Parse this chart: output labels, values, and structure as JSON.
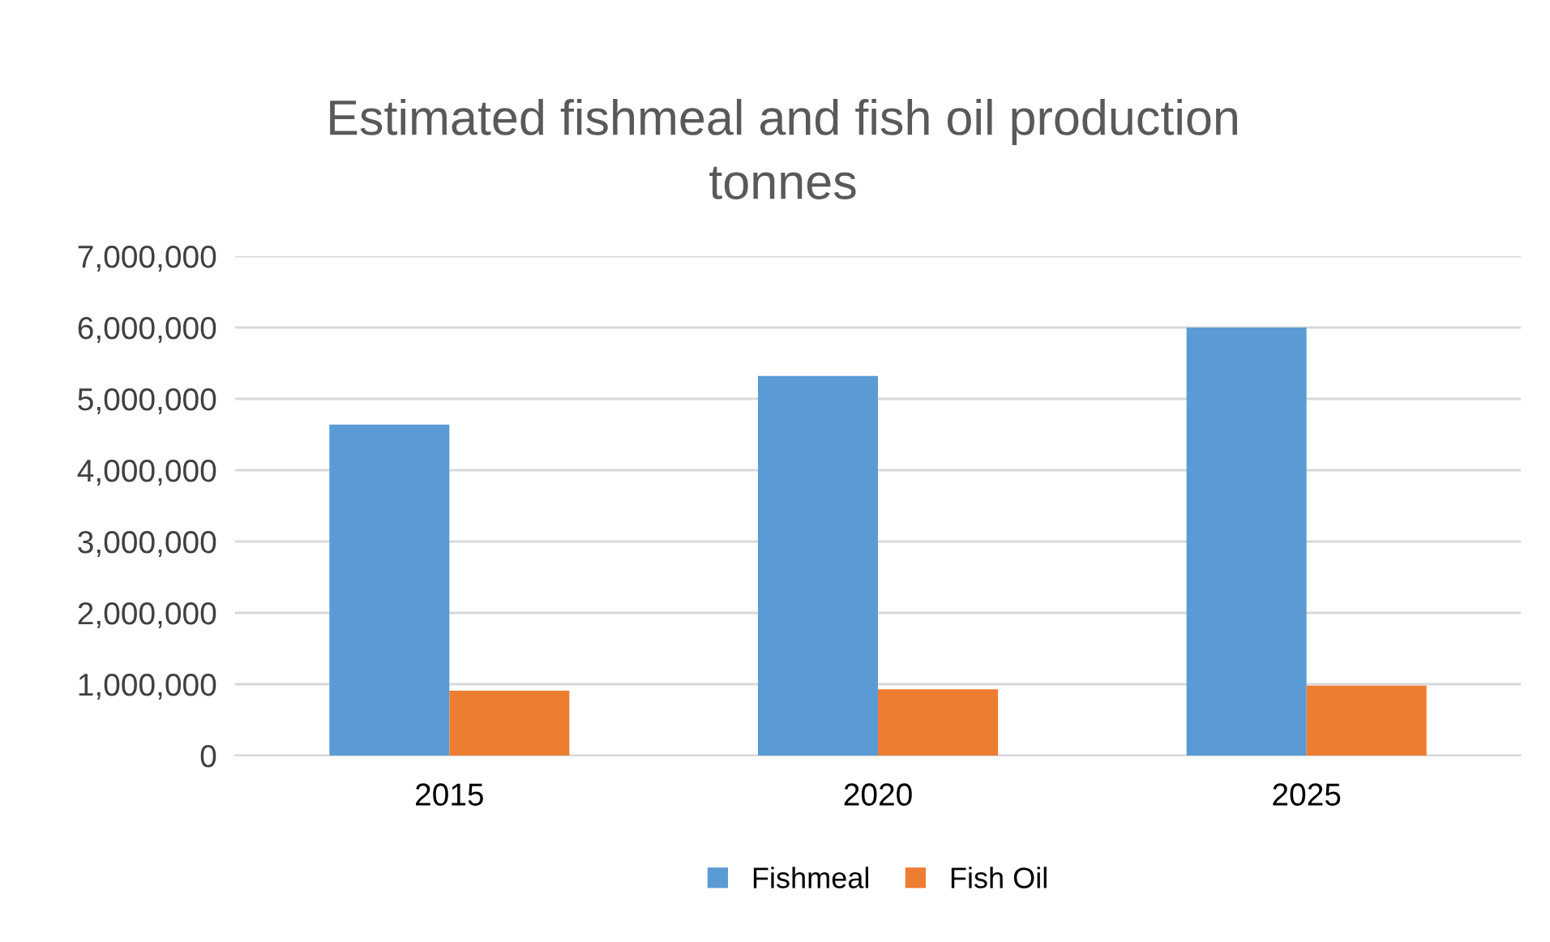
{
  "chart_data": {
    "type": "bar",
    "title": "Estimated fishmeal and fish oil production\ntonnes",
    "categories": [
      "2015",
      "2020",
      "2025"
    ],
    "series": [
      {
        "name": "Fishmeal",
        "color": "#5b9bd5",
        "values": [
          4640000,
          5320000,
          6000000
        ]
      },
      {
        "name": "Fish Oil",
        "color": "#ed7d31",
        "values": [
          910000,
          930000,
          980000
        ]
      }
    ],
    "ylim": [
      0,
      7000000
    ],
    "yticks": [
      {
        "value": 0,
        "label": "0"
      },
      {
        "value": 1000000,
        "label": "1,000,000"
      },
      {
        "value": 2000000,
        "label": "2,000,000"
      },
      {
        "value": 3000000,
        "label": "3,000,000"
      },
      {
        "value": 4000000,
        "label": "4,000,000"
      },
      {
        "value": 5000000,
        "label": "5,000,000"
      },
      {
        "value": 6000000,
        "label": "6,000,000"
      },
      {
        "value": 7000000,
        "label": "7,000,000"
      }
    ],
    "grid": "y",
    "legend": "bottom"
  }
}
